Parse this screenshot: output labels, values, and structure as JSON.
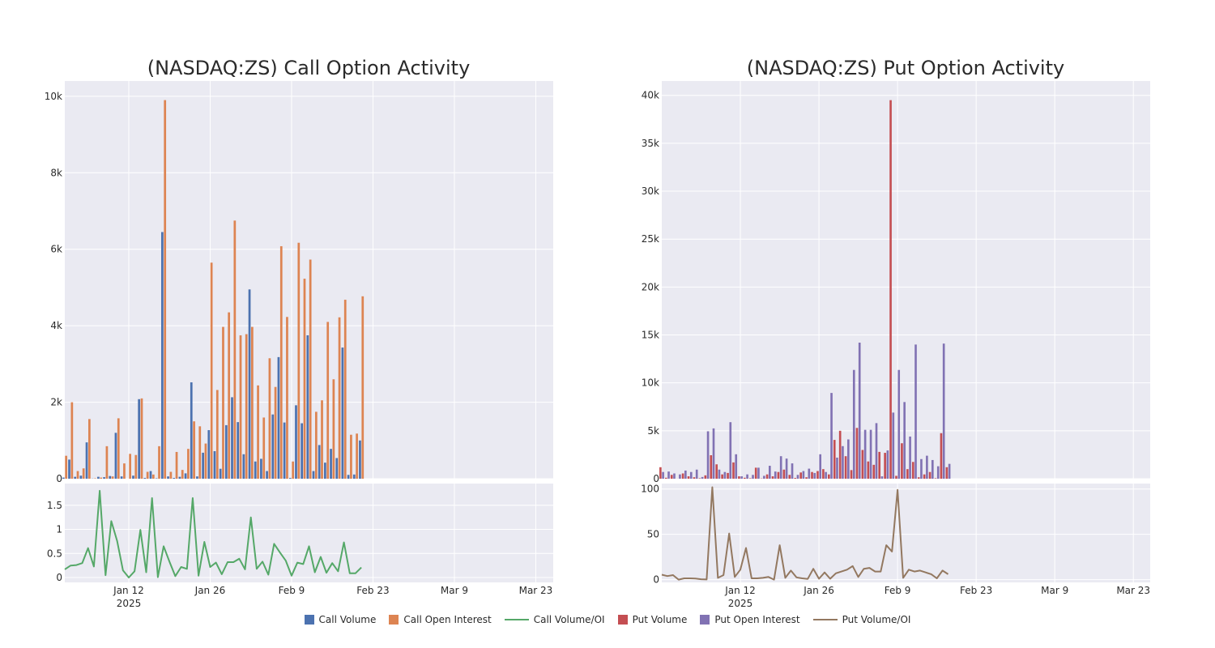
{
  "chart_data": [
    {
      "type": "bar+line",
      "title": "(NASDAQ:ZS) Call Option Activity",
      "xlabel": "",
      "x_tick_labels": [
        "Jan 12\n2025",
        "Jan 26",
        "Feb 9",
        "Feb 23",
        "Mar 9",
        "Mar 23"
      ],
      "x_tick_dates": [
        "2025-01-12",
        "2025-01-26",
        "2025-02-09",
        "2025-02-23",
        "2025-03-09",
        "2025-03-23"
      ],
      "x_range": [
        "2025-01-01",
        "2025-03-26"
      ],
      "top_panel": {
        "ylim": [
          0,
          10400
        ],
        "y_ticks": [
          0,
          2000,
          4000,
          6000,
          8000,
          10000
        ],
        "y_tick_labels": [
          "0",
          "2k",
          "4k",
          "6k",
          "8k",
          "10k"
        ],
        "series": [
          {
            "name": "Call Volume",
            "color": "#4c72b0"
          },
          {
            "name": "Call Open Interest",
            "color": "#dd8452"
          }
        ]
      },
      "bottom_panel": {
        "ylim": [
          -0.1,
          1.95
        ],
        "y_ticks": [
          0,
          0.5,
          1,
          1.5
        ],
        "y_tick_labels": [
          "0",
          "0.5",
          "1",
          "1.5"
        ],
        "series": [
          {
            "name": "Call Volume/OI",
            "color": "#55a868"
          }
        ]
      },
      "points": [
        {
          "date": "2025-01-01",
          "volume": 30,
          "oi": 600,
          "ratio": 0.17
        },
        {
          "date": "2025-01-02",
          "volume": 500,
          "oi": 2000,
          "ratio": 0.25
        },
        {
          "date": "2025-01-03",
          "volume": 50,
          "oi": 200,
          "ratio": 0.26
        },
        {
          "date": "2025-01-04",
          "volume": 80,
          "oi": 270,
          "ratio": 0.3
        },
        {
          "date": "2025-01-05",
          "volume": 950,
          "oi": 1560,
          "ratio": 0.61
        },
        {
          "date": "2025-01-06",
          "volume": 5,
          "oi": 10,
          "ratio": 0.23
        },
        {
          "date": "2025-01-07",
          "volume": 50,
          "oi": 30,
          "ratio": 1.8
        },
        {
          "date": "2025-01-08",
          "volume": 40,
          "oi": 850,
          "ratio": 0.05
        },
        {
          "date": "2025-01-09",
          "volume": 70,
          "oi": 60,
          "ratio": 1.17
        },
        {
          "date": "2025-01-10",
          "volume": 1200,
          "oi": 1580,
          "ratio": 0.76
        },
        {
          "date": "2025-01-11",
          "volume": 60,
          "oi": 400,
          "ratio": 0.15
        },
        {
          "date": "2025-01-12",
          "volume": 0,
          "oi": 650,
          "ratio": 0.0
        },
        {
          "date": "2025-01-13",
          "volume": 80,
          "oi": 620,
          "ratio": 0.13
        },
        {
          "date": "2025-01-14",
          "volume": 2080,
          "oi": 2100,
          "ratio": 0.99
        },
        {
          "date": "2025-01-15",
          "volume": 20,
          "oi": 180,
          "ratio": 0.11
        },
        {
          "date": "2025-01-16",
          "volume": 200,
          "oi": 110,
          "ratio": 1.65
        },
        {
          "date": "2025-01-17",
          "volume": 10,
          "oi": 850,
          "ratio": 0.01
        },
        {
          "date": "2025-01-18",
          "volume": 6450,
          "oi": 9900,
          "ratio": 0.65
        },
        {
          "date": "2025-01-19",
          "volume": 60,
          "oi": 180,
          "ratio": 0.33
        },
        {
          "date": "2025-01-20",
          "volume": 20,
          "oi": 700,
          "ratio": 0.03
        },
        {
          "date": "2025-01-21",
          "volume": 50,
          "oi": 230,
          "ratio": 0.22
        },
        {
          "date": "2025-01-22",
          "volume": 140,
          "oi": 780,
          "ratio": 0.18
        },
        {
          "date": "2025-01-23",
          "volume": 2520,
          "oi": 1500,
          "ratio": 1.65
        },
        {
          "date": "2025-01-24",
          "volume": 60,
          "oi": 1370,
          "ratio": 0.04
        },
        {
          "date": "2025-01-25",
          "volume": 680,
          "oi": 920,
          "ratio": 0.74
        },
        {
          "date": "2025-01-26",
          "volume": 1270,
          "oi": 5650,
          "ratio": 0.22
        },
        {
          "date": "2025-01-27",
          "volume": 720,
          "oi": 2320,
          "ratio": 0.31
        },
        {
          "date": "2025-01-28",
          "volume": 260,
          "oi": 3970,
          "ratio": 0.07
        },
        {
          "date": "2025-01-29",
          "volume": 1400,
          "oi": 4350,
          "ratio": 0.32
        },
        {
          "date": "2025-01-30",
          "volume": 2130,
          "oi": 6750,
          "ratio": 0.32
        },
        {
          "date": "2025-01-31",
          "volume": 1480,
          "oi": 3750,
          "ratio": 0.39
        },
        {
          "date": "2025-02-01",
          "volume": 640,
          "oi": 3780,
          "ratio": 0.17
        },
        {
          "date": "2025-02-02",
          "volume": 4950,
          "oi": 3970,
          "ratio": 1.25
        },
        {
          "date": "2025-02-03",
          "volume": 450,
          "oi": 2440,
          "ratio": 0.18
        },
        {
          "date": "2025-02-04",
          "volume": 520,
          "oi": 1600,
          "ratio": 0.33
        },
        {
          "date": "2025-02-05",
          "volume": 200,
          "oi": 3150,
          "ratio": 0.06
        },
        {
          "date": "2025-02-06",
          "volume": 1680,
          "oi": 2400,
          "ratio": 0.7
        },
        {
          "date": "2025-02-07",
          "volume": 3180,
          "oi": 6080,
          "ratio": 0.52
        },
        {
          "date": "2025-02-08",
          "volume": 1470,
          "oi": 4230,
          "ratio": 0.35
        },
        {
          "date": "2025-02-09",
          "volume": 20,
          "oi": 450,
          "ratio": 0.04
        },
        {
          "date": "2025-02-10",
          "volume": 1920,
          "oi": 6170,
          "ratio": 0.31
        },
        {
          "date": "2025-02-11",
          "volume": 1450,
          "oi": 5230,
          "ratio": 0.28
        },
        {
          "date": "2025-02-12",
          "volume": 3750,
          "oi": 5730,
          "ratio": 0.65
        },
        {
          "date": "2025-02-13",
          "volume": 200,
          "oi": 1750,
          "ratio": 0.11
        },
        {
          "date": "2025-02-14",
          "volume": 880,
          "oi": 2050,
          "ratio": 0.43
        },
        {
          "date": "2025-02-15",
          "volume": 420,
          "oi": 4100,
          "ratio": 0.1
        },
        {
          "date": "2025-02-16",
          "volume": 780,
          "oi": 2600,
          "ratio": 0.3
        },
        {
          "date": "2025-02-17",
          "volume": 540,
          "oi": 4220,
          "ratio": 0.13
        },
        {
          "date": "2025-02-18",
          "volume": 3430,
          "oi": 4680,
          "ratio": 0.73
        },
        {
          "date": "2025-02-19",
          "volume": 100,
          "oi": 1150,
          "ratio": 0.09
        },
        {
          "date": "2025-02-20",
          "volume": 110,
          "oi": 1180,
          "ratio": 0.09
        },
        {
          "date": "2025-02-21",
          "volume": 1000,
          "oi": 4770,
          "ratio": 0.21
        }
      ]
    },
    {
      "type": "bar+line",
      "title": "(NASDAQ:ZS) Put Option Activity",
      "xlabel": "",
      "x_tick_labels": [
        "Jan 12\n2025",
        "Jan 26",
        "Feb 9",
        "Feb 23",
        "Mar 9",
        "Mar 23"
      ],
      "x_tick_dates": [
        "2025-01-12",
        "2025-01-26",
        "2025-02-09",
        "2025-02-23",
        "2025-03-09",
        "2025-03-23"
      ],
      "x_range": [
        "2024-12-29",
        "2025-03-26"
      ],
      "top_panel": {
        "ylim": [
          0,
          41500
        ],
        "y_ticks": [
          0,
          5000,
          10000,
          15000,
          20000,
          25000,
          30000,
          35000,
          40000
        ],
        "y_tick_labels": [
          "0",
          "5k",
          "10k",
          "15k",
          "20k",
          "25k",
          "30k",
          "35k",
          "40k"
        ],
        "series": [
          {
            "name": "Put Volume",
            "color": "#c44e52"
          },
          {
            "name": "Put Open Interest",
            "color": "#8172b3"
          }
        ]
      },
      "bottom_panel": {
        "ylim": [
          -3,
          106
        ],
        "y_ticks": [
          0,
          50,
          100
        ],
        "y_tick_labels": [
          "0",
          "50",
          "100"
        ],
        "series": [
          {
            "name": "Put Volume/OI",
            "color": "#937860"
          }
        ]
      },
      "points": [
        {
          "date": "2024-12-29",
          "volume": 1200,
          "oi": 700,
          "ratio": 5.5
        },
        {
          "date": "2024-12-30",
          "volume": 100,
          "oi": 750,
          "ratio": 4
        },
        {
          "date": "2024-12-31",
          "volume": 400,
          "oi": 550,
          "ratio": 5
        },
        {
          "date": "2025-01-01",
          "volume": 10,
          "oi": 450,
          "ratio": 0
        },
        {
          "date": "2025-01-02",
          "volume": 550,
          "oi": 850,
          "ratio": 1.5
        },
        {
          "date": "2025-01-03",
          "volume": 250,
          "oi": 700,
          "ratio": 1.5
        },
        {
          "date": "2025-01-04",
          "volume": 150,
          "oi": 950,
          "ratio": 1.2
        },
        {
          "date": "2025-01-05",
          "volume": 50,
          "oi": 180,
          "ratio": 0.5
        },
        {
          "date": "2025-01-06",
          "volume": 350,
          "oi": 4950,
          "ratio": 0.2
        },
        {
          "date": "2025-01-07",
          "volume": 2450,
          "oi": 5250,
          "ratio": 102
        },
        {
          "date": "2025-01-08",
          "volume": 1500,
          "oi": 950,
          "ratio": 2
        },
        {
          "date": "2025-01-09",
          "volume": 450,
          "oi": 700,
          "ratio": 5
        },
        {
          "date": "2025-01-10",
          "volume": 600,
          "oi": 5900,
          "ratio": 51
        },
        {
          "date": "2025-01-11",
          "volume": 1700,
          "oi": 2550,
          "ratio": 3
        },
        {
          "date": "2025-01-12",
          "volume": 250,
          "oi": 250,
          "ratio": 11
        },
        {
          "date": "2025-01-13",
          "volume": 100,
          "oi": 450,
          "ratio": 35
        },
        {
          "date": "2025-01-14",
          "volume": 50,
          "oi": 400,
          "ratio": 1.5
        },
        {
          "date": "2025-01-15",
          "volume": 1150,
          "oi": 1150,
          "ratio": 1.5
        },
        {
          "date": "2025-01-16",
          "volume": 30,
          "oi": 300,
          "ratio": 2
        },
        {
          "date": "2025-01-17",
          "volume": 450,
          "oi": 1350,
          "ratio": 3
        },
        {
          "date": "2025-01-18",
          "volume": 250,
          "oi": 750,
          "ratio": 0
        },
        {
          "date": "2025-01-19",
          "volume": 700,
          "oi": 2350,
          "ratio": 38
        },
        {
          "date": "2025-01-20",
          "volume": 950,
          "oi": 2100,
          "ratio": 2
        },
        {
          "date": "2025-01-21",
          "volume": 400,
          "oi": 1600,
          "ratio": 10
        },
        {
          "date": "2025-01-22",
          "volume": 80,
          "oi": 400,
          "ratio": 2.5
        },
        {
          "date": "2025-01-23",
          "volume": 650,
          "oi": 800,
          "ratio": 1.5
        },
        {
          "date": "2025-01-24",
          "volume": 150,
          "oi": 1050,
          "ratio": 0.8
        },
        {
          "date": "2025-01-25",
          "volume": 700,
          "oi": 600,
          "ratio": 12
        },
        {
          "date": "2025-01-26",
          "volume": 800,
          "oi": 2550,
          "ratio": 1
        },
        {
          "date": "2025-01-27",
          "volume": 1000,
          "oi": 700,
          "ratio": 8
        },
        {
          "date": "2025-01-28",
          "volume": 450,
          "oi": 8950,
          "ratio": 1
        },
        {
          "date": "2025-01-29",
          "volume": 4050,
          "oi": 2200,
          "ratio": 7
        },
        {
          "date": "2025-01-30",
          "volume": 5000,
          "oi": 3400,
          "ratio": 9
        },
        {
          "date": "2025-01-31",
          "volume": 2350,
          "oi": 4100,
          "ratio": 11
        },
        {
          "date": "2025-02-01",
          "volume": 900,
          "oi": 11350,
          "ratio": 15
        },
        {
          "date": "2025-02-02",
          "volume": 5300,
          "oi": 14200,
          "ratio": 3
        },
        {
          "date": "2025-02-03",
          "volume": 3000,
          "oi": 5100,
          "ratio": 12
        },
        {
          "date": "2025-02-04",
          "volume": 1800,
          "oi": 5100,
          "ratio": 13
        },
        {
          "date": "2025-02-05",
          "volume": 1450,
          "oi": 5800,
          "ratio": 9
        },
        {
          "date": "2025-02-06",
          "volume": 2800,
          "oi": 250,
          "ratio": 9
        },
        {
          "date": "2025-02-07",
          "volume": 2700,
          "oi": 2950,
          "ratio": 38
        },
        {
          "date": "2025-02-08",
          "volume": 39500,
          "oi": 6900,
          "ratio": 31
        },
        {
          "date": "2025-02-09",
          "volume": 300,
          "oi": 11350,
          "ratio": 99
        },
        {
          "date": "2025-02-10",
          "volume": 3700,
          "oi": 8000,
          "ratio": 2
        },
        {
          "date": "2025-02-11",
          "volume": 1000,
          "oi": 4400,
          "ratio": 11
        },
        {
          "date": "2025-02-12",
          "volume": 1750,
          "oi": 14000,
          "ratio": 9
        },
        {
          "date": "2025-02-13",
          "volume": 150,
          "oi": 2050,
          "ratio": 10
        },
        {
          "date": "2025-02-14",
          "volume": 450,
          "oi": 2400,
          "ratio": 8
        },
        {
          "date": "2025-02-15",
          "volume": 700,
          "oi": 1950,
          "ratio": 6
        },
        {
          "date": "2025-02-16",
          "volume": 50,
          "oi": 1300,
          "ratio": 1.5
        },
        {
          "date": "2025-02-17",
          "volume": 4750,
          "oi": 14100,
          "ratio": 10
        },
        {
          "date": "2025-02-18",
          "volume": 1200,
          "oi": 1550,
          "ratio": 6
        }
      ]
    }
  ],
  "legend": [
    {
      "label": "Call Volume",
      "kind": "square",
      "color": "#4c72b0"
    },
    {
      "label": "Call Open Interest",
      "kind": "square",
      "color": "#dd8452"
    },
    {
      "label": "Call Volume/OI",
      "kind": "line",
      "color": "#55a868"
    },
    {
      "label": "Put Volume",
      "kind": "square",
      "color": "#c44e52"
    },
    {
      "label": "Put Open Interest",
      "kind": "square",
      "color": "#8172b3"
    },
    {
      "label": "Put Volume/OI",
      "kind": "line",
      "color": "#937860"
    }
  ]
}
